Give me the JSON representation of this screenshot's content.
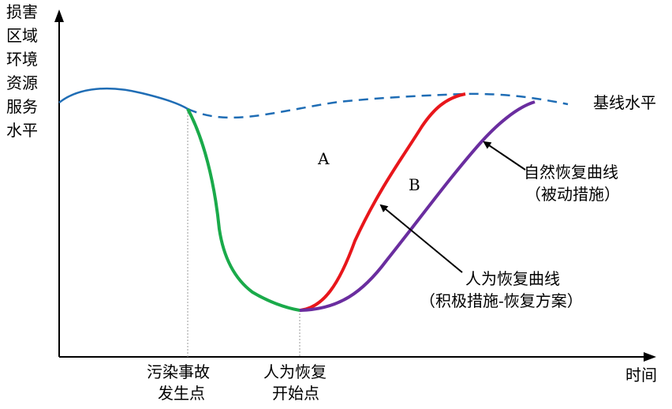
{
  "y_axis_label": [
    "损害",
    "区域",
    "环境",
    "资源",
    "服务",
    "水平"
  ],
  "x_axis_label": "时间",
  "baseline_label": "基线水平",
  "region_a": "A",
  "region_b": "B",
  "natural_recovery": [
    "自然恢复曲线",
    "（被动措施）"
  ],
  "human_recovery": [
    "人为恢复曲线",
    "（积极措施-恢复方案）"
  ],
  "incident_point": [
    "污染事故",
    "发生点"
  ],
  "restoration_start": [
    "人为恢复",
    "开始点"
  ],
  "colors": {
    "baseline": "#1f6db5",
    "damage": "#1aaa4a",
    "human": "#e8161b",
    "natural": "#6a2d9f",
    "guide": "#999999"
  }
}
